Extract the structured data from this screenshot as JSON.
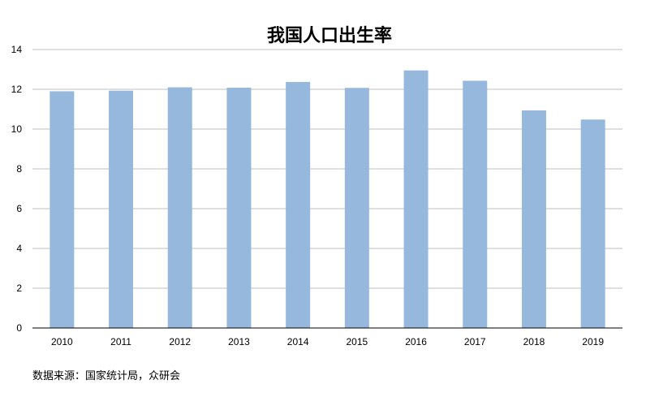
{
  "chart_data": {
    "type": "bar",
    "title": "我国人口出生率",
    "categories": [
      "2010",
      "2011",
      "2012",
      "2013",
      "2014",
      "2015",
      "2016",
      "2017",
      "2018",
      "2019"
    ],
    "values": [
      11.9,
      11.93,
      12.1,
      12.08,
      12.37,
      12.07,
      12.95,
      12.43,
      10.94,
      10.48
    ],
    "ylim": [
      0,
      14
    ],
    "yticks": [
      0,
      2,
      4,
      6,
      8,
      10,
      12,
      14
    ],
    "grid": true,
    "bar_color": "#95b8dc",
    "grid_color": "#bfbfbf"
  },
  "source_note": "数据来源：国家统计局，众研会"
}
